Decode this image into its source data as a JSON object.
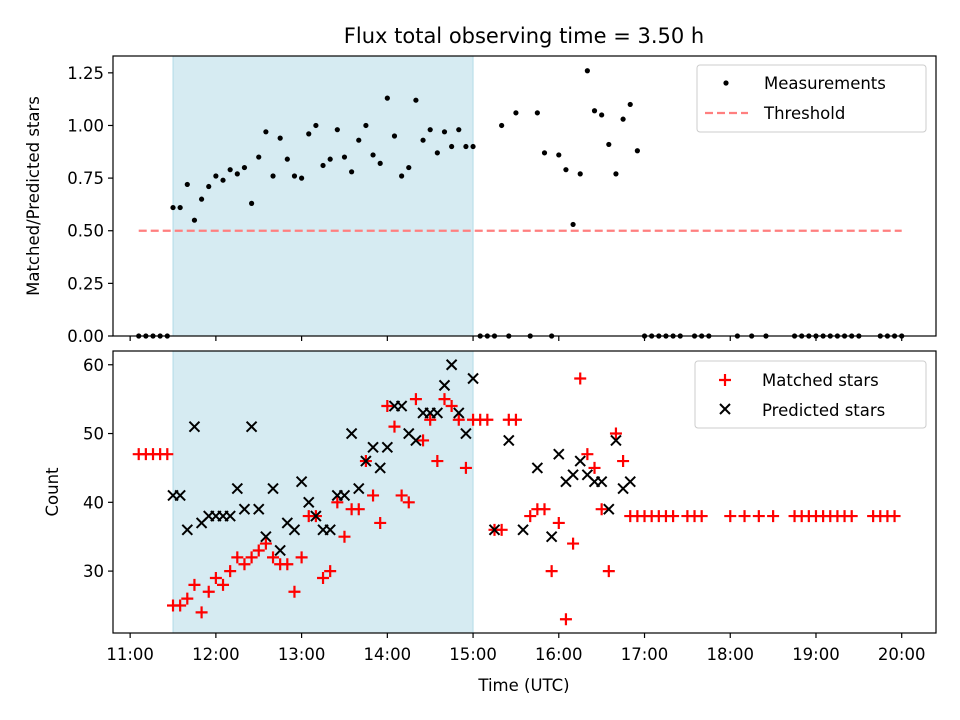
{
  "chart_data": [
    {
      "type": "scatter",
      "title": "Flux total observing time = 3.50 h",
      "ylabel": "Matched/Predicted stars",
      "xlim": [
        "10:48",
        "20:24"
      ],
      "ylim": [
        0,
        1.33
      ],
      "yticks": [
        "0.00",
        "0.25",
        "0.50",
        "0.75",
        "1.00",
        "1.25"
      ],
      "grid": false,
      "legend_location": "top-right",
      "shaded_interval": [
        "11:30",
        "15:00"
      ],
      "shade_color": "#add8e6",
      "series": [
        {
          "name": "Measurements",
          "kind": "scatter",
          "marker": "dot",
          "color": "#000000",
          "points": [
            [
              "11:06",
              0
            ],
            [
              "11:11",
              0
            ],
            [
              "11:16",
              0
            ],
            [
              "11:21",
              0
            ],
            [
              "11:26",
              0
            ],
            [
              "11:30",
              0.61
            ],
            [
              "11:35",
              0.61
            ],
            [
              "11:40",
              0.72
            ],
            [
              "11:45",
              0.55
            ],
            [
              "11:50",
              0.65
            ],
            [
              "11:55",
              0.71
            ],
            [
              "12:00",
              0.76
            ],
            [
              "12:05",
              0.74
            ],
            [
              "12:10",
              0.79
            ],
            [
              "12:15",
              0.77
            ],
            [
              "12:20",
              0.8
            ],
            [
              "12:25",
              0.63
            ],
            [
              "12:30",
              0.85
            ],
            [
              "12:35",
              0.97
            ],
            [
              "12:40",
              0.76
            ],
            [
              "12:45",
              0.94
            ],
            [
              "12:50",
              0.84
            ],
            [
              "12:55",
              0.76
            ],
            [
              "13:00",
              0.75
            ],
            [
              "13:05",
              0.96
            ],
            [
              "13:10",
              1.0
            ],
            [
              "13:15",
              0.81
            ],
            [
              "13:20",
              0.84
            ],
            [
              "13:25",
              0.98
            ],
            [
              "13:30",
              0.85
            ],
            [
              "13:35",
              0.78
            ],
            [
              "13:40",
              0.93
            ],
            [
              "13:45",
              1.0
            ],
            [
              "13:50",
              0.86
            ],
            [
              "13:55",
              0.82
            ],
            [
              "14:00",
              1.13
            ],
            [
              "14:05",
              0.95
            ],
            [
              "14:10",
              0.76
            ],
            [
              "14:15",
              0.8
            ],
            [
              "14:20",
              1.12
            ],
            [
              "14:25",
              0.93
            ],
            [
              "14:30",
              0.98
            ],
            [
              "14:35",
              0.87
            ],
            [
              "14:40",
              0.97
            ],
            [
              "14:45",
              0.9
            ],
            [
              "14:50",
              0.98
            ],
            [
              "14:55",
              0.9
            ],
            [
              "15:00",
              0.9
            ],
            [
              "15:05",
              0
            ],
            [
              "15:10",
              0
            ],
            [
              "15:15",
              0
            ],
            [
              "15:20",
              1.0
            ],
            [
              "15:25",
              0
            ],
            [
              "15:30",
              1.06
            ],
            [
              "15:40",
              0
            ],
            [
              "15:45",
              1.06
            ],
            [
              "15:50",
              0.87
            ],
            [
              "15:55",
              0
            ],
            [
              "16:00",
              0.86
            ],
            [
              "16:05",
              0.79
            ],
            [
              "16:10",
              0.53
            ],
            [
              "16:15",
              0.77
            ],
            [
              "16:20",
              1.26
            ],
            [
              "16:25",
              1.07
            ],
            [
              "16:30",
              1.05
            ],
            [
              "16:35",
              0.91
            ],
            [
              "16:40",
              0.77
            ],
            [
              "16:45",
              1.03
            ],
            [
              "16:50",
              1.1
            ],
            [
              "16:55",
              0.88
            ],
            [
              "17:00",
              0
            ],
            [
              "17:05",
              0
            ],
            [
              "17:10",
              0
            ],
            [
              "17:15",
              0
            ],
            [
              "17:20",
              0
            ],
            [
              "17:25",
              0
            ],
            [
              "17:35",
              0
            ],
            [
              "17:40",
              0
            ],
            [
              "17:45",
              0
            ],
            [
              "18:05",
              0
            ],
            [
              "18:15",
              0
            ],
            [
              "18:25",
              0
            ],
            [
              "18:45",
              0
            ],
            [
              "18:50",
              0
            ],
            [
              "18:55",
              0
            ],
            [
              "19:00",
              0
            ],
            [
              "19:05",
              0
            ],
            [
              "19:10",
              0
            ],
            [
              "19:15",
              0
            ],
            [
              "19:20",
              0
            ],
            [
              "19:25",
              0
            ],
            [
              "19:30",
              0
            ],
            [
              "19:45",
              0
            ],
            [
              "19:50",
              0
            ],
            [
              "19:55",
              0
            ],
            [
              "20:00",
              0
            ]
          ]
        },
        {
          "name": "Threshold",
          "kind": "line",
          "style": "dashed",
          "color": "#ff7f7f",
          "points": [
            [
              "11:06",
              0.5
            ],
            [
              "20:00",
              0.5
            ]
          ]
        }
      ]
    },
    {
      "type": "scatter",
      "xlabel": "Time (UTC)",
      "ylabel": "Count",
      "xlim": [
        "10:48",
        "20:24"
      ],
      "ylim": [
        21,
        62
      ],
      "yticks": [
        "30",
        "40",
        "50",
        "60"
      ],
      "xticks": [
        "11:00",
        "12:00",
        "13:00",
        "14:00",
        "15:00",
        "16:00",
        "17:00",
        "18:00",
        "19:00",
        "20:00"
      ],
      "grid": false,
      "legend_location": "top-right",
      "shaded_interval": [
        "11:30",
        "15:00"
      ],
      "shade_color": "#add8e6",
      "series": [
        {
          "name": "Matched stars",
          "kind": "scatter",
          "marker": "plus",
          "color": "#ff0000",
          "points": [
            [
              "11:06",
              47
            ],
            [
              "11:11",
              47
            ],
            [
              "11:16",
              47
            ],
            [
              "11:21",
              47
            ],
            [
              "11:26",
              47
            ],
            [
              "11:30",
              25
            ],
            [
              "11:35",
              25
            ],
            [
              "11:40",
              26
            ],
            [
              "11:45",
              28
            ],
            [
              "11:50",
              24
            ],
            [
              "11:55",
              27
            ],
            [
              "12:00",
              29
            ],
            [
              "12:05",
              28
            ],
            [
              "12:10",
              30
            ],
            [
              "12:15",
              32
            ],
            [
              "12:20",
              31
            ],
            [
              "12:25",
              32
            ],
            [
              "12:30",
              33
            ],
            [
              "12:35",
              34
            ],
            [
              "12:40",
              32
            ],
            [
              "12:45",
              31
            ],
            [
              "12:50",
              31
            ],
            [
              "12:55",
              27
            ],
            [
              "13:00",
              32
            ],
            [
              "13:05",
              38
            ],
            [
              "13:10",
              38
            ],
            [
              "13:15",
              29
            ],
            [
              "13:20",
              30
            ],
            [
              "13:25",
              40
            ],
            [
              "13:30",
              35
            ],
            [
              "13:35",
              39
            ],
            [
              "13:40",
              39
            ],
            [
              "13:45",
              46
            ],
            [
              "13:50",
              41
            ],
            [
              "13:55",
              37
            ],
            [
              "14:00",
              54
            ],
            [
              "14:05",
              51
            ],
            [
              "14:10",
              41
            ],
            [
              "14:15",
              40
            ],
            [
              "14:20",
              55
            ],
            [
              "14:25",
              49
            ],
            [
              "14:30",
              52
            ],
            [
              "14:35",
              46
            ],
            [
              "14:40",
              55
            ],
            [
              "14:45",
              54
            ],
            [
              "14:50",
              52
            ],
            [
              "14:55",
              45
            ],
            [
              "15:00",
              52
            ],
            [
              "15:05",
              52
            ],
            [
              "15:10",
              52
            ],
            [
              "15:15",
              36
            ],
            [
              "15:20",
              36
            ],
            [
              "15:25",
              52
            ],
            [
              "15:30",
              52
            ],
            [
              "15:40",
              38
            ],
            [
              "15:45",
              39
            ],
            [
              "15:50",
              39
            ],
            [
              "15:55",
              30
            ],
            [
              "16:00",
              37
            ],
            [
              "16:05",
              23
            ],
            [
              "16:10",
              34
            ],
            [
              "16:15",
              58
            ],
            [
              "16:20",
              47
            ],
            [
              "16:25",
              45
            ],
            [
              "16:30",
              39
            ],
            [
              "16:35",
              30
            ],
            [
              "16:40",
              50
            ],
            [
              "16:45",
              46
            ],
            [
              "16:50",
              38
            ],
            [
              "16:55",
              38
            ],
            [
              "17:00",
              38
            ],
            [
              "17:05",
              38
            ],
            [
              "17:10",
              38
            ],
            [
              "17:15",
              38
            ],
            [
              "17:20",
              38
            ],
            [
              "17:30",
              38
            ],
            [
              "17:35",
              38
            ],
            [
              "17:40",
              38
            ],
            [
              "18:00",
              38
            ],
            [
              "18:10",
              38
            ],
            [
              "18:20",
              38
            ],
            [
              "18:30",
              38
            ],
            [
              "18:45",
              38
            ],
            [
              "18:50",
              38
            ],
            [
              "18:55",
              38
            ],
            [
              "19:00",
              38
            ],
            [
              "19:05",
              38
            ],
            [
              "19:10",
              38
            ],
            [
              "19:15",
              38
            ],
            [
              "19:20",
              38
            ],
            [
              "19:25",
              38
            ],
            [
              "19:40",
              38
            ],
            [
              "19:45",
              38
            ],
            [
              "19:50",
              38
            ],
            [
              "19:55",
              38
            ]
          ]
        },
        {
          "name": "Predicted stars",
          "kind": "scatter",
          "marker": "x",
          "color": "#000000",
          "points": [
            [
              "11:30",
              41
            ],
            [
              "11:35",
              41
            ],
            [
              "11:40",
              36
            ],
            [
              "11:45",
              51
            ],
            [
              "11:50",
              37
            ],
            [
              "11:55",
              38
            ],
            [
              "12:00",
              38
            ],
            [
              "12:05",
              38
            ],
            [
              "12:10",
              38
            ],
            [
              "12:15",
              42
            ],
            [
              "12:20",
              39
            ],
            [
              "12:25",
              51
            ],
            [
              "12:30",
              39
            ],
            [
              "12:35",
              35
            ],
            [
              "12:40",
              42
            ],
            [
              "12:45",
              33
            ],
            [
              "12:50",
              37
            ],
            [
              "12:55",
              36
            ],
            [
              "13:00",
              43
            ],
            [
              "13:05",
              40
            ],
            [
              "13:10",
              38
            ],
            [
              "13:15",
              36
            ],
            [
              "13:20",
              36
            ],
            [
              "13:25",
              41
            ],
            [
              "13:30",
              41
            ],
            [
              "13:35",
              50
            ],
            [
              "13:40",
              42
            ],
            [
              "13:45",
              46
            ],
            [
              "13:50",
              48
            ],
            [
              "13:55",
              45
            ],
            [
              "14:00",
              48
            ],
            [
              "14:05",
              54
            ],
            [
              "14:10",
              54
            ],
            [
              "14:15",
              50
            ],
            [
              "14:20",
              49
            ],
            [
              "14:25",
              53
            ],
            [
              "14:30",
              53
            ],
            [
              "14:35",
              53
            ],
            [
              "14:40",
              57
            ],
            [
              "14:45",
              60
            ],
            [
              "14:50",
              53
            ],
            [
              "14:55",
              50
            ],
            [
              "15:00",
              58
            ],
            [
              "15:15",
              36
            ],
            [
              "15:25",
              49
            ],
            [
              "15:35",
              36
            ],
            [
              "15:45",
              45
            ],
            [
              "15:55",
              35
            ],
            [
              "16:00",
              47
            ],
            [
              "16:05",
              43
            ],
            [
              "16:10",
              44
            ],
            [
              "16:15",
              46
            ],
            [
              "16:20",
              44
            ],
            [
              "16:25",
              43
            ],
            [
              "16:30",
              43
            ],
            [
              "16:35",
              39
            ],
            [
              "16:40",
              49
            ],
            [
              "16:45",
              42
            ],
            [
              "16:50",
              43
            ]
          ]
        }
      ]
    }
  ]
}
